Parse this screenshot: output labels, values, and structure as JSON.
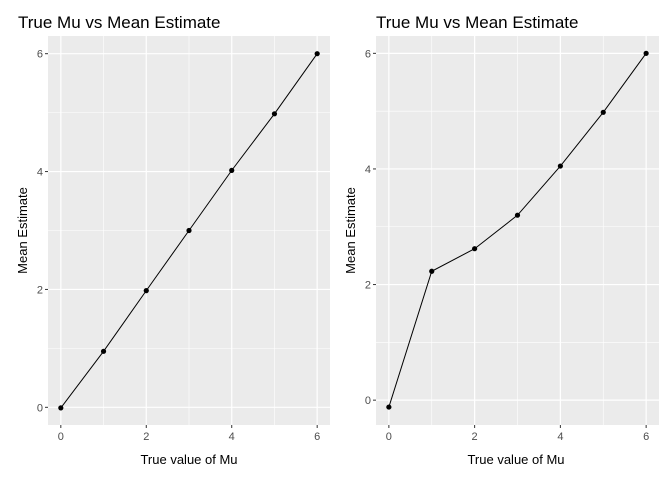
{
  "chart_data": [
    {
      "type": "line",
      "title": "True Mu vs Mean Estimate",
      "xlabel": "True value of Mu",
      "ylabel": "Mean Estimate",
      "x": [
        0,
        1,
        2,
        3,
        4,
        5,
        6
      ],
      "y": [
        -0.01,
        0.95,
        1.98,
        3.0,
        4.02,
        4.98,
        6.0
      ],
      "xlim": [
        -0.3,
        6.3
      ],
      "ylim": [
        -0.3,
        6.3
      ],
      "xticks": [
        "0",
        "2",
        "4",
        "6"
      ],
      "yticks": [
        "0",
        "2",
        "4",
        "6"
      ],
      "grid": true,
      "panel_background": "#ebebeb",
      "grid_color": "#ffffff",
      "line_color": "#000000",
      "point_color": "#000000"
    },
    {
      "type": "line",
      "title": "True Mu vs Mean Estimate",
      "xlabel": "True value of Mu",
      "ylabel": "Mean Estimate",
      "x": [
        0,
        1,
        2,
        3,
        4,
        5,
        6
      ],
      "y": [
        -0.12,
        2.23,
        2.62,
        3.2,
        4.05,
        4.98,
        6.0
      ],
      "xlim": [
        -0.3,
        6.3
      ],
      "ylim": [
        -0.43,
        6.3
      ],
      "xticks": [
        "0",
        "2",
        "4",
        "6"
      ],
      "yticks": [
        "0",
        "2",
        "4",
        "6"
      ],
      "grid": true,
      "panel_background": "#ebebeb",
      "grid_color": "#ffffff",
      "line_color": "#000000",
      "point_color": "#000000"
    }
  ]
}
